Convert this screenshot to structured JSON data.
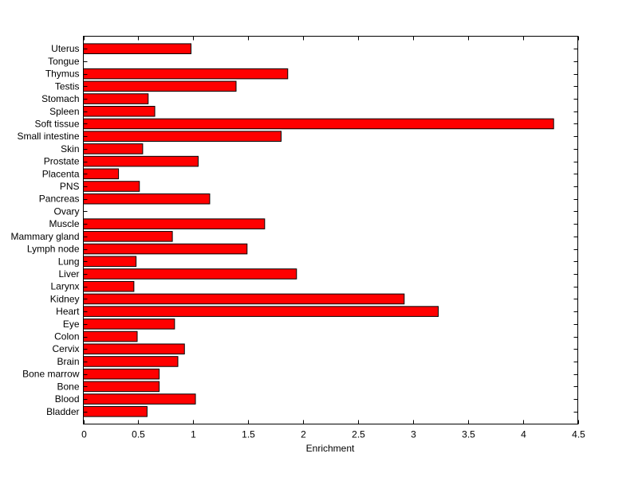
{
  "chart_data": {
    "type": "bar",
    "orientation": "horizontal",
    "title": "",
    "xlabel": "Enrichment",
    "ylabel": "",
    "xlim": [
      0,
      4.5
    ],
    "xticks": [
      "0",
      "0.5",
      "1",
      "1.5",
      "2",
      "2.5",
      "3",
      "3.5",
      "4",
      "4.5"
    ],
    "bar_color": "#ff0000",
    "grid": false,
    "categories": [
      "Bladder",
      "Blood",
      "Bone",
      "Bone marrow",
      "Brain",
      "Cervix",
      "Colon",
      "Eye",
      "Heart",
      "Kidney",
      "Larynx",
      "Liver",
      "Lung",
      "Lymph node",
      "Mammary gland",
      "Muscle",
      "Ovary",
      "Pancreas",
      "PNS",
      "Placenta",
      "Prostate",
      "Skin",
      "Small intestine",
      "Soft tissue",
      "Spleen",
      "Stomach",
      "Testis",
      "Thymus",
      "Tongue",
      "Uterus"
    ],
    "values": [
      0.58,
      1.02,
      0.69,
      0.69,
      0.86,
      0.92,
      0.49,
      0.83,
      3.23,
      2.92,
      0.46,
      1.94,
      0.48,
      1.49,
      0.81,
      1.65,
      0,
      1.15,
      0.51,
      0.32,
      1.045,
      0.54,
      1.8,
      4.28,
      0.65,
      0.59,
      1.39,
      1.86,
      0,
      0.98
    ]
  }
}
